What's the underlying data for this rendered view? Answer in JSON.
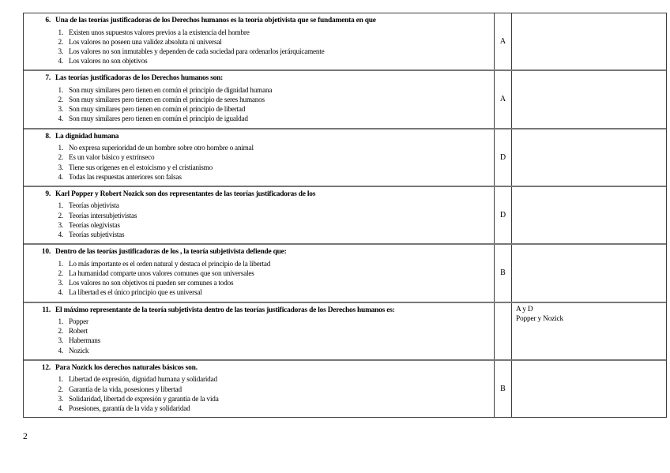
{
  "colors": {
    "text": "#000000",
    "border_dark": "#3d3d3d",
    "border_light": "#787878",
    "background": "#ffffff"
  },
  "page": {
    "number": "2"
  },
  "table": {
    "option_numbers": [
      "1.",
      "2.",
      "3.",
      "4."
    ],
    "questions": [
      {
        "number": "6.",
        "title": "Una de las teorías justificadoras de los Derechos humanos es la teoría objetivista que se fundamenta en que",
        "options": [
          "Existen unos supuestos valores previos a la existencia del hombre",
          "Los valores no poseen una validez absoluta ni universal",
          "Los valores no son inmutables y dependen de cada sociedad para ordenarlos jerárquicamente",
          "Los valores no son objetivos"
        ],
        "answer": "A"
      },
      {
        "number": "7.",
        "title": "Las teorías justificadoras de los Derechos humanos son:",
        "options": [
          "Son muy similares pero tienen en común el principio de dignidad humana",
          "Son muy similares pero tienen en común el principio de seres humanos",
          "Son muy similares pero tienen en común el principio de libertad",
          "Son muy similares pero tienen en común el principio de igualdad"
        ],
        "answer": "A"
      },
      {
        "number": "8.",
        "title": "La dignidad humana",
        "options": [
          "No expresa superioridad de un hombre sobre otro hombre o animal",
          "Es un valor básico y extrínseco",
          "Tiene sus orígenes en el estoicismo y el cristianismo",
          "Todas las respuestas anteriores son falsas"
        ],
        "answer": "D"
      },
      {
        "number": "9.",
        "title": "Karl Popper y Robert Nozick son dos representantes de las teorías justificadoras de los",
        "options": [
          "Teorías objetivista",
          "Teorías intersubjetivistas",
          "Teorías olegivistas",
          "Teorías subjetivistas"
        ],
        "answer": "D"
      },
      {
        "number": "10.",
        "title": "Dentro de las teorías justificadoras de los , la teoría subjetivista defiende que:",
        "options": [
          "Lo más importante es el orden natural y destaca el principio de la libertad",
          "La humanidad comparte unos valores comunes que son universales",
          "Los valores no son objetivos ni pueden ser comunes a todos",
          "La libertad es el único principio que es universal"
        ],
        "answer": "B"
      },
      {
        "number": "11.",
        "title": "El máximo representante de la teoría subjetivista dentro de las teorías justificadoras de los Derechos humanos es:",
        "options": [
          "Popper",
          "Robert",
          "Habermans",
          "Nozick"
        ],
        "answer": "",
        "note": [
          "A y D",
          "Popper y Nozick"
        ]
      },
      {
        "number": "12.",
        "title": "Para Nozick los derechos naturales básicos son.",
        "options": [
          "Libertad de expresión, dignidad humana y solidaridad",
          "Garantía de la vida, posesiones y libertad",
          "Solidaridad, libertad de expresión y garantía de la vida",
          "Posesiones, garantía de la vida y solidaridad"
        ],
        "answer": "B"
      }
    ]
  }
}
